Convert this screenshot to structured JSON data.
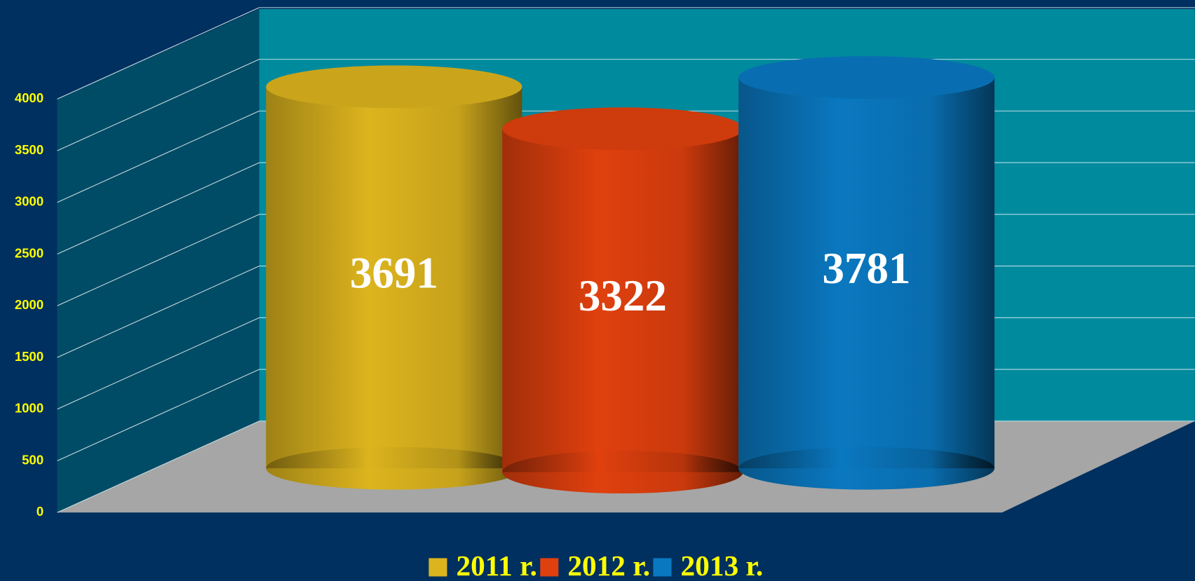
{
  "chart_data": {
    "type": "bar",
    "categories": [
      null
    ],
    "series": [
      {
        "name": "2011 r.",
        "color": "#dcb41e",
        "values": [
          3691
        ]
      },
      {
        "name": "2012 r.",
        "color": "#e0400e",
        "values": [
          3322
        ]
      },
      {
        "name": "2013 r.",
        "color": "#0a78c0",
        "values": [
          3781
        ]
      }
    ],
    "ylim": [
      0,
      4000
    ],
    "yticks": [
      0,
      500,
      1000,
      1500,
      2000,
      2500,
      3000,
      3500,
      4000
    ],
    "grid": true,
    "legend": "bottom"
  }
}
